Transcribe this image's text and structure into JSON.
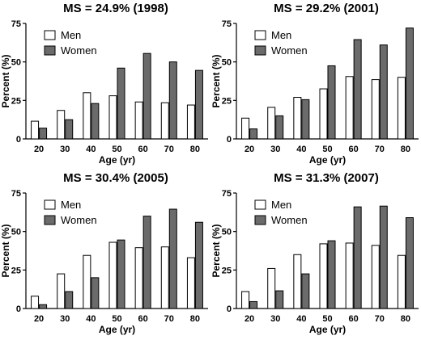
{
  "chart_data": [
    {
      "type": "bar",
      "title": "MS = 24.9%  (1998)",
      "xlabel": "Age (yr)",
      "ylabel": "Percent (%)",
      "ylim": [
        0,
        75
      ],
      "yticks": [
        "0",
        "25",
        "50",
        "75"
      ],
      "categories": [
        "20",
        "30",
        "40",
        "50",
        "60",
        "70",
        "80"
      ],
      "series": [
        {
          "name": "Men",
          "color": "#ffffff",
          "values": [
            11.5,
            18.5,
            30,
            28,
            24,
            23.5,
            22
          ]
        },
        {
          "name": "Women",
          "color": "#6b6b6b",
          "values": [
            7,
            12.5,
            23,
            46,
            55.5,
            50,
            44.5
          ]
        }
      ],
      "legend": "top-left",
      "grid": false
    },
    {
      "type": "bar",
      "title": "MS = 29.2%  (2001)",
      "xlabel": "Age (yr)",
      "ylabel": "Percent (%)",
      "ylim": [
        0,
        75
      ],
      "yticks": [
        "0",
        "25",
        "50",
        "75"
      ],
      "categories": [
        "20",
        "30",
        "40",
        "50",
        "60",
        "70",
        "80"
      ],
      "series": [
        {
          "name": "Men",
          "color": "#ffffff",
          "values": [
            13.5,
            20.5,
            27,
            32.5,
            40.5,
            38.5,
            40
          ]
        },
        {
          "name": "Women",
          "color": "#6b6b6b",
          "values": [
            6.5,
            15,
            25.5,
            47.5,
            64.5,
            61,
            72
          ]
        }
      ],
      "legend": "top-left",
      "grid": false
    },
    {
      "type": "bar",
      "title": "MS = 30.4%  (2005)",
      "xlabel": "Age (yr)",
      "ylabel": "Percent (%)",
      "ylim": [
        0,
        75
      ],
      "yticks": [
        "0",
        "25",
        "50",
        "75"
      ],
      "categories": [
        "20",
        "30",
        "40",
        "50",
        "60",
        "70",
        "80"
      ],
      "series": [
        {
          "name": "Men",
          "color": "#ffffff",
          "values": [
            8,
            22.5,
            34.5,
            43,
            39.5,
            40,
            33
          ]
        },
        {
          "name": "Women",
          "color": "#6b6b6b",
          "values": [
            2.5,
            11,
            20,
            44.5,
            60,
            64.5,
            56
          ]
        }
      ],
      "legend": "top-left",
      "grid": false
    },
    {
      "type": "bar",
      "title": "MS = 31.3%  (2007)",
      "xlabel": "Age (yr)",
      "ylabel": "Percent (%)",
      "ylim": [
        0,
        75
      ],
      "yticks": [
        "0",
        "25",
        "50",
        "75"
      ],
      "categories": [
        "20",
        "30",
        "40",
        "50",
        "60",
        "70",
        "80"
      ],
      "series": [
        {
          "name": "Men",
          "color": "#ffffff",
          "values": [
            11,
            26,
            35,
            42,
            42.5,
            41,
            34.5
          ]
        },
        {
          "name": "Women",
          "color": "#6b6b6b",
          "values": [
            4.5,
            11.5,
            22.5,
            44,
            66,
            66.5,
            59
          ]
        }
      ],
      "legend": "top-left",
      "grid": false
    }
  ]
}
